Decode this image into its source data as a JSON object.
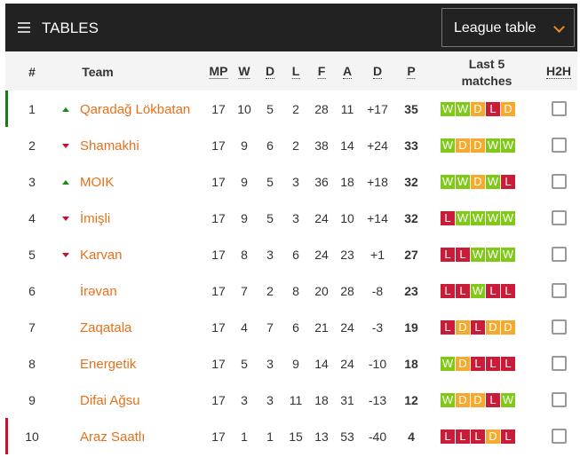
{
  "header": {
    "title": "TABLES",
    "icon": "list-icon",
    "select_value": "League table"
  },
  "columns": {
    "rank": "#",
    "team": "Team",
    "mp": "MP",
    "w": "W",
    "d": "D",
    "l": "L",
    "f": "F",
    "a": "A",
    "gd": "D",
    "p": "P",
    "last5": "Last 5 matches",
    "h2h": "H2H"
  },
  "colors": {
    "W": "#7ac70c",
    "D": "#f5a623",
    "L": "#c8102e",
    "team": "#e8701a",
    "promo": "#1a7a1a",
    "releg": "#c8102e"
  },
  "rows": [
    {
      "rank": "1",
      "trend": "up",
      "team": "Qaradağ Lökbatan",
      "mp": "17",
      "w": "10",
      "d": "5",
      "l": "2",
      "f": "28",
      "a": "11",
      "gd": "+17",
      "p": "35",
      "form": [
        "W",
        "W",
        "D",
        "L",
        "D"
      ],
      "zone": "promo"
    },
    {
      "rank": "2",
      "trend": "down",
      "team": "Shamakhi",
      "mp": "17",
      "w": "9",
      "d": "6",
      "l": "2",
      "f": "38",
      "a": "14",
      "gd": "+24",
      "p": "33",
      "form": [
        "W",
        "D",
        "D",
        "W",
        "W"
      ]
    },
    {
      "rank": "3",
      "trend": "up",
      "team": "MOIK",
      "mp": "17",
      "w": "9",
      "d": "5",
      "l": "3",
      "f": "36",
      "a": "18",
      "gd": "+18",
      "p": "32",
      "form": [
        "W",
        "W",
        "D",
        "W",
        "L"
      ]
    },
    {
      "rank": "4",
      "trend": "down",
      "team": "İmişli",
      "mp": "17",
      "w": "9",
      "d": "5",
      "l": "3",
      "f": "24",
      "a": "10",
      "gd": "+14",
      "p": "32",
      "form": [
        "L",
        "W",
        "W",
        "W",
        "W"
      ]
    },
    {
      "rank": "5",
      "trend": "down",
      "team": "Karvan",
      "mp": "17",
      "w": "8",
      "d": "3",
      "l": "6",
      "f": "24",
      "a": "23",
      "gd": "+1",
      "p": "27",
      "form": [
        "L",
        "L",
        "W",
        "W",
        "W"
      ]
    },
    {
      "rank": "6",
      "trend": "",
      "team": "İrəvan",
      "mp": "17",
      "w": "7",
      "d": "2",
      "l": "8",
      "f": "20",
      "a": "28",
      "gd": "-8",
      "p": "23",
      "form": [
        "L",
        "L",
        "W",
        "L",
        "L"
      ]
    },
    {
      "rank": "7",
      "trend": "",
      "team": "Zaqatala",
      "mp": "17",
      "w": "4",
      "d": "7",
      "l": "6",
      "f": "21",
      "a": "24",
      "gd": "-3",
      "p": "19",
      "form": [
        "L",
        "D",
        "L",
        "D",
        "D"
      ]
    },
    {
      "rank": "8",
      "trend": "",
      "team": "Energetik",
      "mp": "17",
      "w": "5",
      "d": "3",
      "l": "9",
      "f": "14",
      "a": "24",
      "gd": "-10",
      "p": "18",
      "form": [
        "W",
        "D",
        "L",
        "L",
        "L"
      ]
    },
    {
      "rank": "9",
      "trend": "",
      "team": "Difai Ağsu",
      "mp": "17",
      "w": "3",
      "d": "3",
      "l": "11",
      "f": "18",
      "a": "31",
      "gd": "-13",
      "p": "12",
      "form": [
        "W",
        "D",
        "D",
        "L",
        "W"
      ]
    },
    {
      "rank": "10",
      "trend": "",
      "team": "Araz Saatlı",
      "mp": "17",
      "w": "1",
      "d": "1",
      "l": "15",
      "f": "13",
      "a": "53",
      "gd": "-40",
      "p": "4",
      "form": [
        "L",
        "L",
        "L",
        "D",
        "L"
      ],
      "zone": "releg"
    }
  ]
}
